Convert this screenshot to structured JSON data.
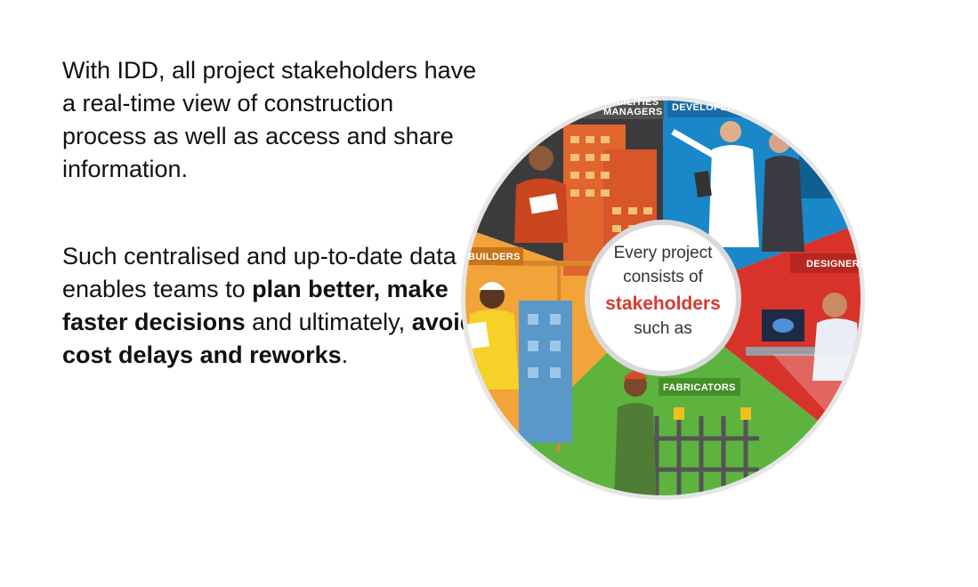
{
  "paragraph1": "With IDD, all project stakeholders have a real-time view of construction process as well as access and share information.",
  "paragraph2": {
    "part1": "Such centralised and up-to-date data enables teams to ",
    "bold1": "plan better, make faster decisions",
    "part2": " and ultimately, ",
    "bold2": "avoid cost delays and reworks",
    "part3": "."
  },
  "wheel": {
    "segments": {
      "facilities_line1": "FACILITIES",
      "facilities_line2": "MANAGERS",
      "developers": "DEVELOPERS",
      "designers": "DESIGNERS",
      "fabricators": "FABRICATORS",
      "builders": "BUILDERS"
    },
    "center": {
      "line1": "Every project",
      "line2": "consists of",
      "highlight": "stakeholders",
      "line4": "such as"
    },
    "colors": {
      "facilities": "#3b3b3d",
      "developers": "#1a87c9",
      "designers": "#d8332b",
      "fabricators": "#5db33e",
      "builders": "#f2a33a",
      "highlight": "#d63a2f"
    }
  }
}
